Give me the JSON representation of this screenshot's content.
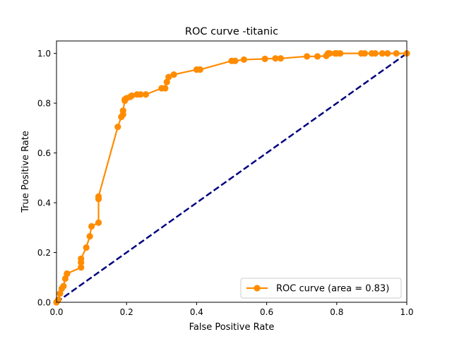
{
  "chart_data": {
    "type": "line",
    "title": "ROC curve -titanic",
    "xlabel": "False Positive Rate",
    "ylabel": "True Positive Rate",
    "xlim": [
      0.0,
      1.0
    ],
    "ylim": [
      0.0,
      1.05
    ],
    "xticks": [
      "0.0",
      "0.2",
      "0.4",
      "0.6",
      "0.8",
      "1.0"
    ],
    "yticks": [
      "0.0",
      "0.2",
      "0.4",
      "0.6",
      "0.8",
      "1.0"
    ],
    "grid": false,
    "legend_position": "lower-right",
    "series": [
      {
        "name": "ROC curve (area = 0.83)",
        "color": "#ff8c00",
        "style": "solid line with circle markers",
        "x": [
          0.0,
          0.005,
          0.01,
          0.015,
          0.02,
          0.025,
          0.03,
          0.03,
          0.07,
          0.07,
          0.07,
          0.085,
          0.095,
          0.1,
          0.12,
          0.12,
          0.12,
          0.175,
          0.185,
          0.19,
          0.19,
          0.195,
          0.195,
          0.2,
          0.21,
          0.215,
          0.23,
          0.24,
          0.255,
          0.3,
          0.31,
          0.31,
          0.315,
          0.32,
          0.335,
          0.4,
          0.41,
          0.5,
          0.51,
          0.535,
          0.595,
          0.625,
          0.64,
          0.715,
          0.745,
          0.77,
          0.775,
          0.78,
          0.795,
          0.8,
          0.81,
          0.87,
          0.88,
          0.9,
          0.91,
          0.93,
          0.945,
          0.97,
          1.0
        ],
        "y": [
          0.0,
          0.01,
          0.035,
          0.055,
          0.065,
          0.095,
          0.115,
          0.115,
          0.14,
          0.16,
          0.175,
          0.22,
          0.265,
          0.305,
          0.32,
          0.415,
          0.425,
          0.705,
          0.745,
          0.755,
          0.77,
          0.81,
          0.815,
          0.82,
          0.825,
          0.83,
          0.835,
          0.835,
          0.835,
          0.86,
          0.86,
          0.86,
          0.885,
          0.905,
          0.915,
          0.935,
          0.935,
          0.97,
          0.97,
          0.975,
          0.978,
          0.98,
          0.98,
          0.988,
          0.988,
          0.99,
          1.0,
          1.0,
          1.0,
          1.0,
          1.0,
          1.0,
          1.0,
          1.0,
          1.0,
          1.0,
          1.0,
          1.0,
          1.0
        ]
      },
      {
        "color": "#000080",
        "style": "dashed diagonal",
        "x": [
          0.0,
          1.0
        ],
        "y": [
          0.0,
          1.0
        ]
      }
    ]
  }
}
